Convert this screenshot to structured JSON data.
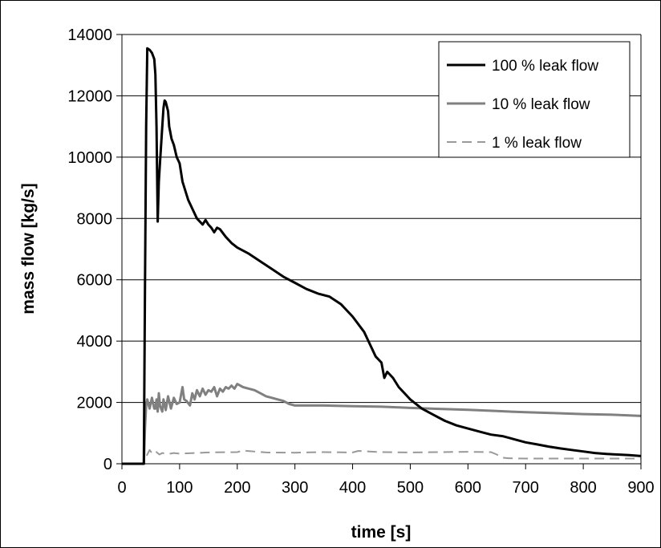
{
  "chart_data": {
    "type": "line",
    "xlabel": "time [s]",
    "ylabel": "mass flow [kg/s]",
    "xlim": [
      0,
      900
    ],
    "ylim": [
      0,
      14000
    ],
    "xticks": [
      "0",
      "100",
      "200",
      "300",
      "400",
      "500",
      "600",
      "700",
      "800",
      "900"
    ],
    "yticks": [
      "0",
      "2000",
      "4000",
      "6000",
      "8000",
      "10000",
      "12000",
      "14000"
    ],
    "grid": "horizontal",
    "legend_position": "top-right",
    "series": [
      {
        "name": "100 % leak flow",
        "color": "#000000",
        "style": "solid",
        "x": [
          0,
          38,
          40,
          42,
          44,
          48,
          52,
          56,
          58,
          60,
          62,
          64,
          66,
          70,
          72,
          74,
          76,
          80,
          82,
          84,
          86,
          90,
          95,
          100,
          105,
          110,
          115,
          120,
          130,
          140,
          145,
          150,
          155,
          160,
          165,
          170,
          180,
          190,
          200,
          220,
          240,
          260,
          280,
          300,
          320,
          340,
          360,
          380,
          400,
          420,
          430,
          440,
          450,
          455,
          460,
          470,
          480,
          500,
          520,
          540,
          560,
          580,
          600,
          620,
          640,
          660,
          680,
          700,
          720,
          740,
          760,
          780,
          800,
          820,
          840,
          860,
          880,
          900
        ],
        "y": [
          0,
          0,
          6000,
          11000,
          13550,
          13500,
          13400,
          13200,
          12700,
          11000,
          7900,
          9200,
          9800,
          11000,
          11600,
          11850,
          11800,
          11500,
          11000,
          10800,
          10600,
          10400,
          10000,
          9800,
          9200,
          8900,
          8600,
          8400,
          8000,
          7800,
          7950,
          7800,
          7700,
          7550,
          7700,
          7650,
          7400,
          7200,
          7050,
          6850,
          6600,
          6350,
          6100,
          5900,
          5700,
          5550,
          5450,
          5200,
          4800,
          4300,
          3900,
          3500,
          3300,
          2800,
          3000,
          2800,
          2500,
          2100,
          1800,
          1600,
          1400,
          1250,
          1150,
          1050,
          950,
          900,
          800,
          700,
          630,
          560,
          500,
          450,
          400,
          350,
          320,
          300,
          280,
          250
        ]
      },
      {
        "name": "10 % leak flow",
        "color": "#808080",
        "style": "solid",
        "x": [
          0,
          38,
          40,
          42,
          44,
          48,
          52,
          56,
          58,
          60,
          62,
          64,
          66,
          70,
          72,
          76,
          80,
          85,
          90,
          95,
          100,
          105,
          108,
          112,
          118,
          122,
          126,
          130,
          135,
          140,
          145,
          150,
          155,
          160,
          165,
          170,
          175,
          180,
          185,
          190,
          195,
          200,
          210,
          220,
          230,
          240,
          250,
          260,
          270,
          280,
          290,
          300,
          350,
          400,
          450,
          500,
          550,
          600,
          650,
          700,
          750,
          800,
          850,
          900
        ],
        "y": [
          0,
          0,
          1200,
          1900,
          2100,
          1800,
          2150,
          1800,
          1800,
          2100,
          1700,
          2300,
          1900,
          1700,
          2100,
          1750,
          2200,
          1800,
          2150,
          1950,
          2000,
          2500,
          2100,
          2050,
          1900,
          2300,
          2100,
          2400,
          2200,
          2450,
          2250,
          2400,
          2350,
          2500,
          2200,
          2450,
          2350,
          2500,
          2450,
          2550,
          2450,
          2600,
          2500,
          2450,
          2400,
          2300,
          2200,
          2150,
          2100,
          2050,
          1950,
          1900,
          1900,
          1880,
          1860,
          1820,
          1790,
          1760,
          1720,
          1680,
          1650,
          1620,
          1600,
          1560
        ]
      },
      {
        "name": "1 % leak flow",
        "color": "#999999",
        "style": "dashed",
        "x": [
          0,
          38,
          40,
          44,
          48,
          52,
          56,
          60,
          65,
          70,
          80,
          90,
          100,
          150,
          200,
          210,
          250,
          300,
          350,
          400,
          410,
          450,
          500,
          550,
          600,
          640,
          650,
          660,
          670,
          700,
          750,
          800,
          850,
          900
        ],
        "y": [
          0,
          0,
          150,
          300,
          450,
          350,
          420,
          380,
          300,
          350,
          320,
          350,
          330,
          370,
          380,
          430,
          370,
          360,
          380,
          370,
          420,
          380,
          370,
          380,
          390,
          380,
          300,
          200,
          180,
          170,
          170,
          170,
          170,
          170
        ]
      }
    ]
  }
}
